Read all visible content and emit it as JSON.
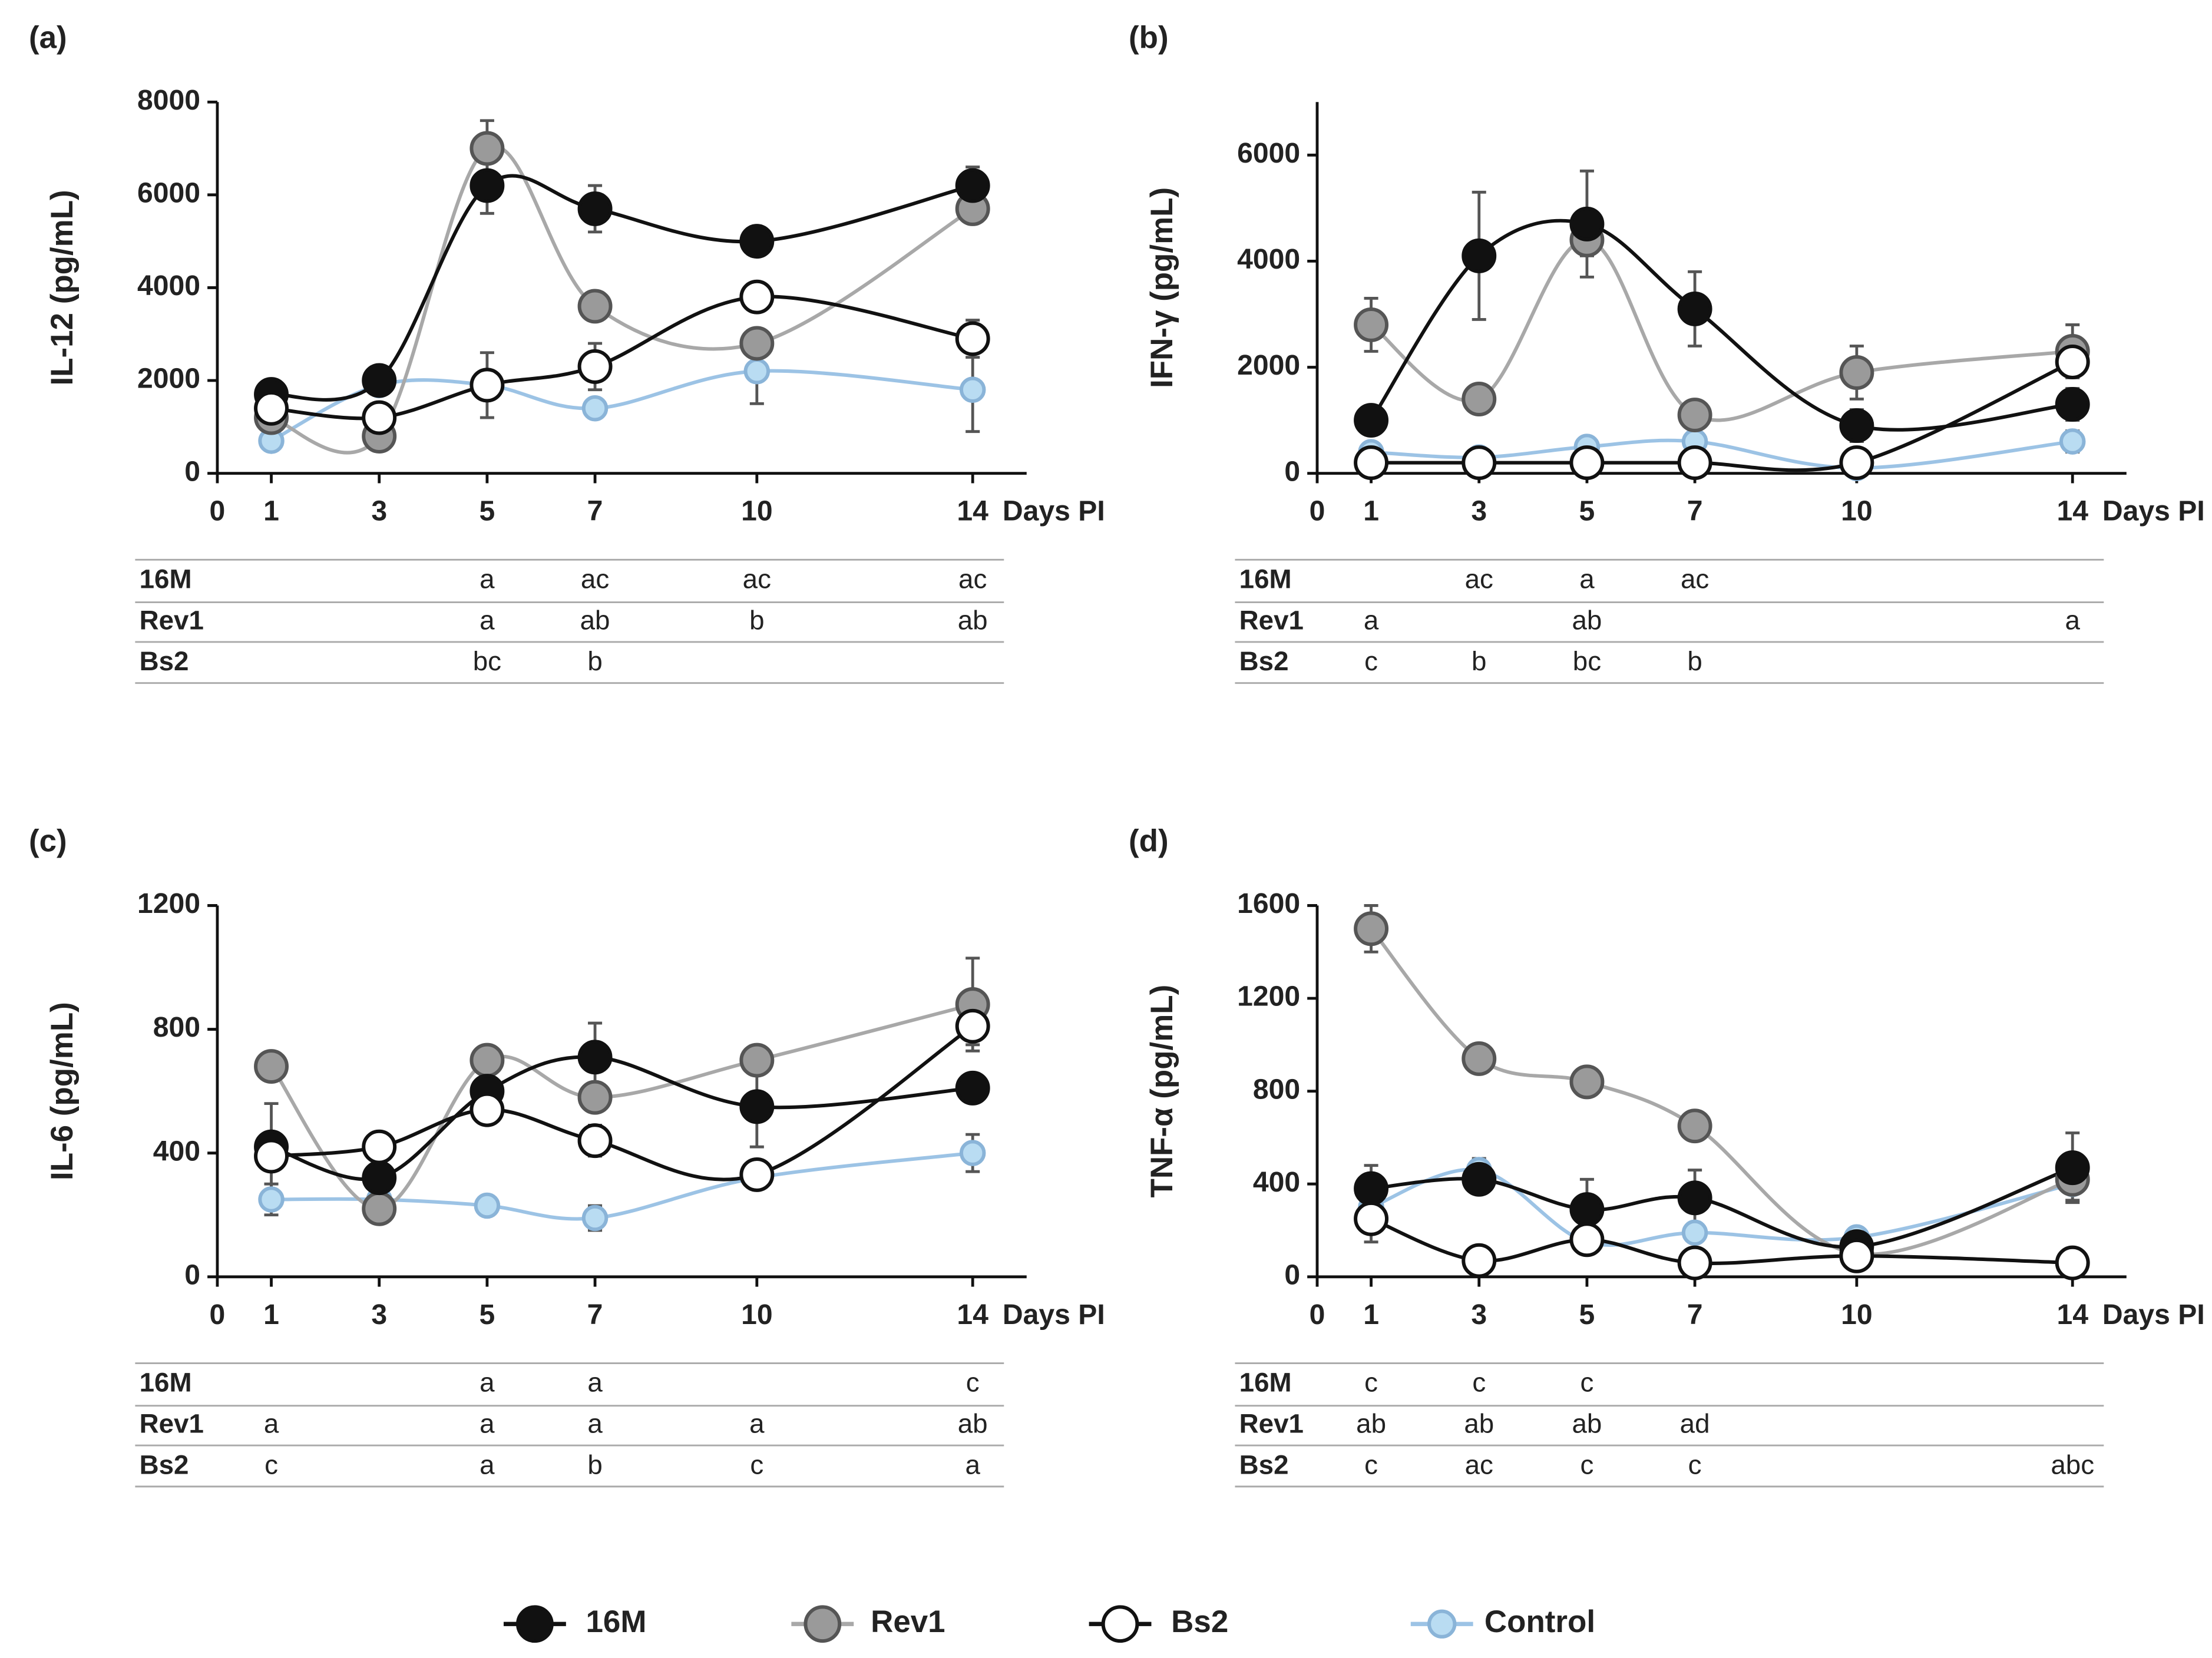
{
  "legend": [
    {
      "name": "16M",
      "fill": "#111111",
      "stroke": "#111111",
      "line": "#111111"
    },
    {
      "name": "Rev1",
      "fill": "#9a9a9a",
      "stroke": "#555555",
      "line": "#a8a8a8"
    },
    {
      "name": "Bs2",
      "fill": "#ffffff",
      "stroke": "#111111",
      "line": "#111111"
    },
    {
      "name": "Control",
      "fill": "#b9dcf2",
      "stroke": "#8ab4d8",
      "line": "#9cc3e5"
    }
  ],
  "chart_data": [
    {
      "type": "line",
      "label": "(a)",
      "ylabel": "IL-12 (pg/mL)",
      "xlabel": "Days PI",
      "x": [
        1,
        3,
        5,
        7,
        10,
        14
      ],
      "xlim": [
        0,
        15
      ],
      "xticks": [
        0,
        1,
        3,
        5,
        7,
        10,
        14
      ],
      "ylim": [
        0,
        8000
      ],
      "yticks": [
        0,
        2000,
        4000,
        6000,
        8000
      ],
      "series": [
        {
          "values": [
            1700,
            2000,
            6200,
            5700,
            5000,
            6200
          ],
          "errors": [
            null,
            null,
            600,
            500,
            null,
            400
          ]
        },
        {
          "values": [
            1200,
            800,
            7000,
            3600,
            2800,
            5700
          ],
          "errors": [
            null,
            null,
            600,
            null,
            null,
            null
          ]
        },
        {
          "values": [
            1400,
            1200,
            1900,
            2300,
            3800,
            2900
          ],
          "errors": [
            null,
            null,
            700,
            500,
            null,
            400
          ]
        },
        {
          "values": [
            700,
            1900,
            1900,
            1400,
            2200,
            1800
          ],
          "errors": [
            null,
            null,
            null,
            null,
            700,
            900
          ]
        }
      ],
      "table": {
        "rows": [
          {
            "label": "16M",
            "cells": [
              null,
              null,
              "a",
              "ac",
              "ac",
              "ac"
            ]
          },
          {
            "label": "Rev1",
            "cells": [
              null,
              null,
              "a",
              "ab",
              "b",
              "ab"
            ]
          },
          {
            "label": "Bs2",
            "cells": [
              null,
              null,
              "bc",
              "b",
              null,
              null
            ]
          }
        ]
      }
    },
    {
      "type": "line",
      "label": "(b)",
      "ylabel": "IFN-γ (pg/mL)",
      "xlabel": "Days PI",
      "x": [
        1,
        3,
        5,
        7,
        10,
        14
      ],
      "xlim": [
        0,
        15
      ],
      "xticks": [
        0,
        1,
        3,
        5,
        7,
        10,
        14
      ],
      "ylim": [
        0,
        7000
      ],
      "yticks": [
        0,
        2000,
        4000,
        6000
      ],
      "series": [
        {
          "values": [
            1000,
            4100,
            4700,
            3100,
            900,
            1300
          ],
          "errors": [
            null,
            1200,
            1000,
            700,
            300,
            300
          ]
        },
        {
          "values": [
            2800,
            1400,
            4400,
            1100,
            1900,
            2300
          ],
          "errors": [
            500,
            null,
            300,
            null,
            500,
            500
          ]
        },
        {
          "values": [
            200,
            200,
            200,
            200,
            200,
            2100
          ],
          "errors": [
            null,
            null,
            null,
            null,
            null,
            null
          ]
        },
        {
          "values": [
            400,
            300,
            500,
            600,
            100,
            600
          ],
          "errors": [
            null,
            null,
            null,
            null,
            null,
            200
          ]
        }
      ],
      "table": {
        "rows": [
          {
            "label": "16M",
            "cells": [
              null,
              "ac",
              "a",
              "ac",
              null,
              null
            ]
          },
          {
            "label": "Rev1",
            "cells": [
              "a",
              null,
              "ab",
              null,
              null,
              "a"
            ]
          },
          {
            "label": "Bs2",
            "cells": [
              "c",
              "b",
              "bc",
              "b",
              null,
              null
            ]
          }
        ]
      }
    },
    {
      "type": "line",
      "label": "(c)",
      "ylabel": "IL-6 (pg/mL)",
      "xlabel": "Days PI",
      "x": [
        1,
        3,
        5,
        7,
        10,
        14
      ],
      "xlim": [
        0,
        15
      ],
      "xticks": [
        0,
        1,
        3,
        5,
        7,
        10,
        14
      ],
      "ylim": [
        0,
        1200
      ],
      "yticks": [
        0,
        400,
        800,
        1200
      ],
      "series": [
        {
          "values": [
            420,
            320,
            600,
            710,
            550,
            610
          ],
          "errors": [
            140,
            null,
            null,
            110,
            130,
            null
          ]
        },
        {
          "values": [
            680,
            220,
            700,
            580,
            700,
            880
          ],
          "errors": [
            null,
            null,
            null,
            null,
            null,
            150
          ]
        },
        {
          "values": [
            390,
            420,
            540,
            440,
            330,
            810
          ],
          "errors": [
            null,
            null,
            30,
            50,
            null,
            60
          ]
        },
        {
          "values": [
            250,
            250,
            230,
            190,
            320,
            400
          ],
          "errors": [
            50,
            null,
            30,
            40,
            null,
            60
          ]
        }
      ],
      "table": {
        "rows": [
          {
            "label": "16M",
            "cells": [
              null,
              null,
              "a",
              "a",
              null,
              "c"
            ]
          },
          {
            "label": "Rev1",
            "cells": [
              "a",
              null,
              "a",
              "a",
              "a",
              "ab"
            ]
          },
          {
            "label": "Bs2",
            "cells": [
              "c",
              null,
              "a",
              "b",
              "c",
              "a"
            ]
          }
        ]
      }
    },
    {
      "type": "line",
      "label": "(d)",
      "ylabel": "TNF-α (pg/mL)",
      "xlabel": "Days PI",
      "x": [
        1,
        3,
        5,
        7,
        10,
        14
      ],
      "xlim": [
        0,
        15
      ],
      "xticks": [
        0,
        1,
        3,
        5,
        7,
        10,
        14
      ],
      "ylim": [
        0,
        1600
      ],
      "yticks": [
        0,
        400,
        800,
        1200,
        1600
      ],
      "series": [
        {
          "values": [
            380,
            420,
            290,
            340,
            130,
            470
          ],
          "errors": [
            100,
            null,
            130,
            120,
            null,
            150
          ]
        },
        {
          "values": [
            1500,
            940,
            840,
            650,
            100,
            420
          ],
          "errors": [
            100,
            50,
            null,
            null,
            null,
            null
          ]
        },
        {
          "values": [
            250,
            70,
            160,
            60,
            90,
            60
          ],
          "errors": [
            100,
            null,
            null,
            null,
            null,
            null
          ]
        },
        {
          "values": [
            300,
            460,
            150,
            190,
            170,
            400
          ],
          "errors": [
            null,
            50,
            null,
            null,
            null,
            70
          ]
        }
      ],
      "table": {
        "rows": [
          {
            "label": "16M",
            "cells": [
              "c",
              "c",
              "c",
              null,
              null,
              null
            ]
          },
          {
            "label": "Rev1",
            "cells": [
              "ab",
              "ab",
              "ab",
              "ad",
              null,
              null
            ]
          },
          {
            "label": "Bs2",
            "cells": [
              "c",
              "ac",
              "c",
              "c",
              null,
              "abc"
            ]
          }
        ]
      }
    }
  ]
}
